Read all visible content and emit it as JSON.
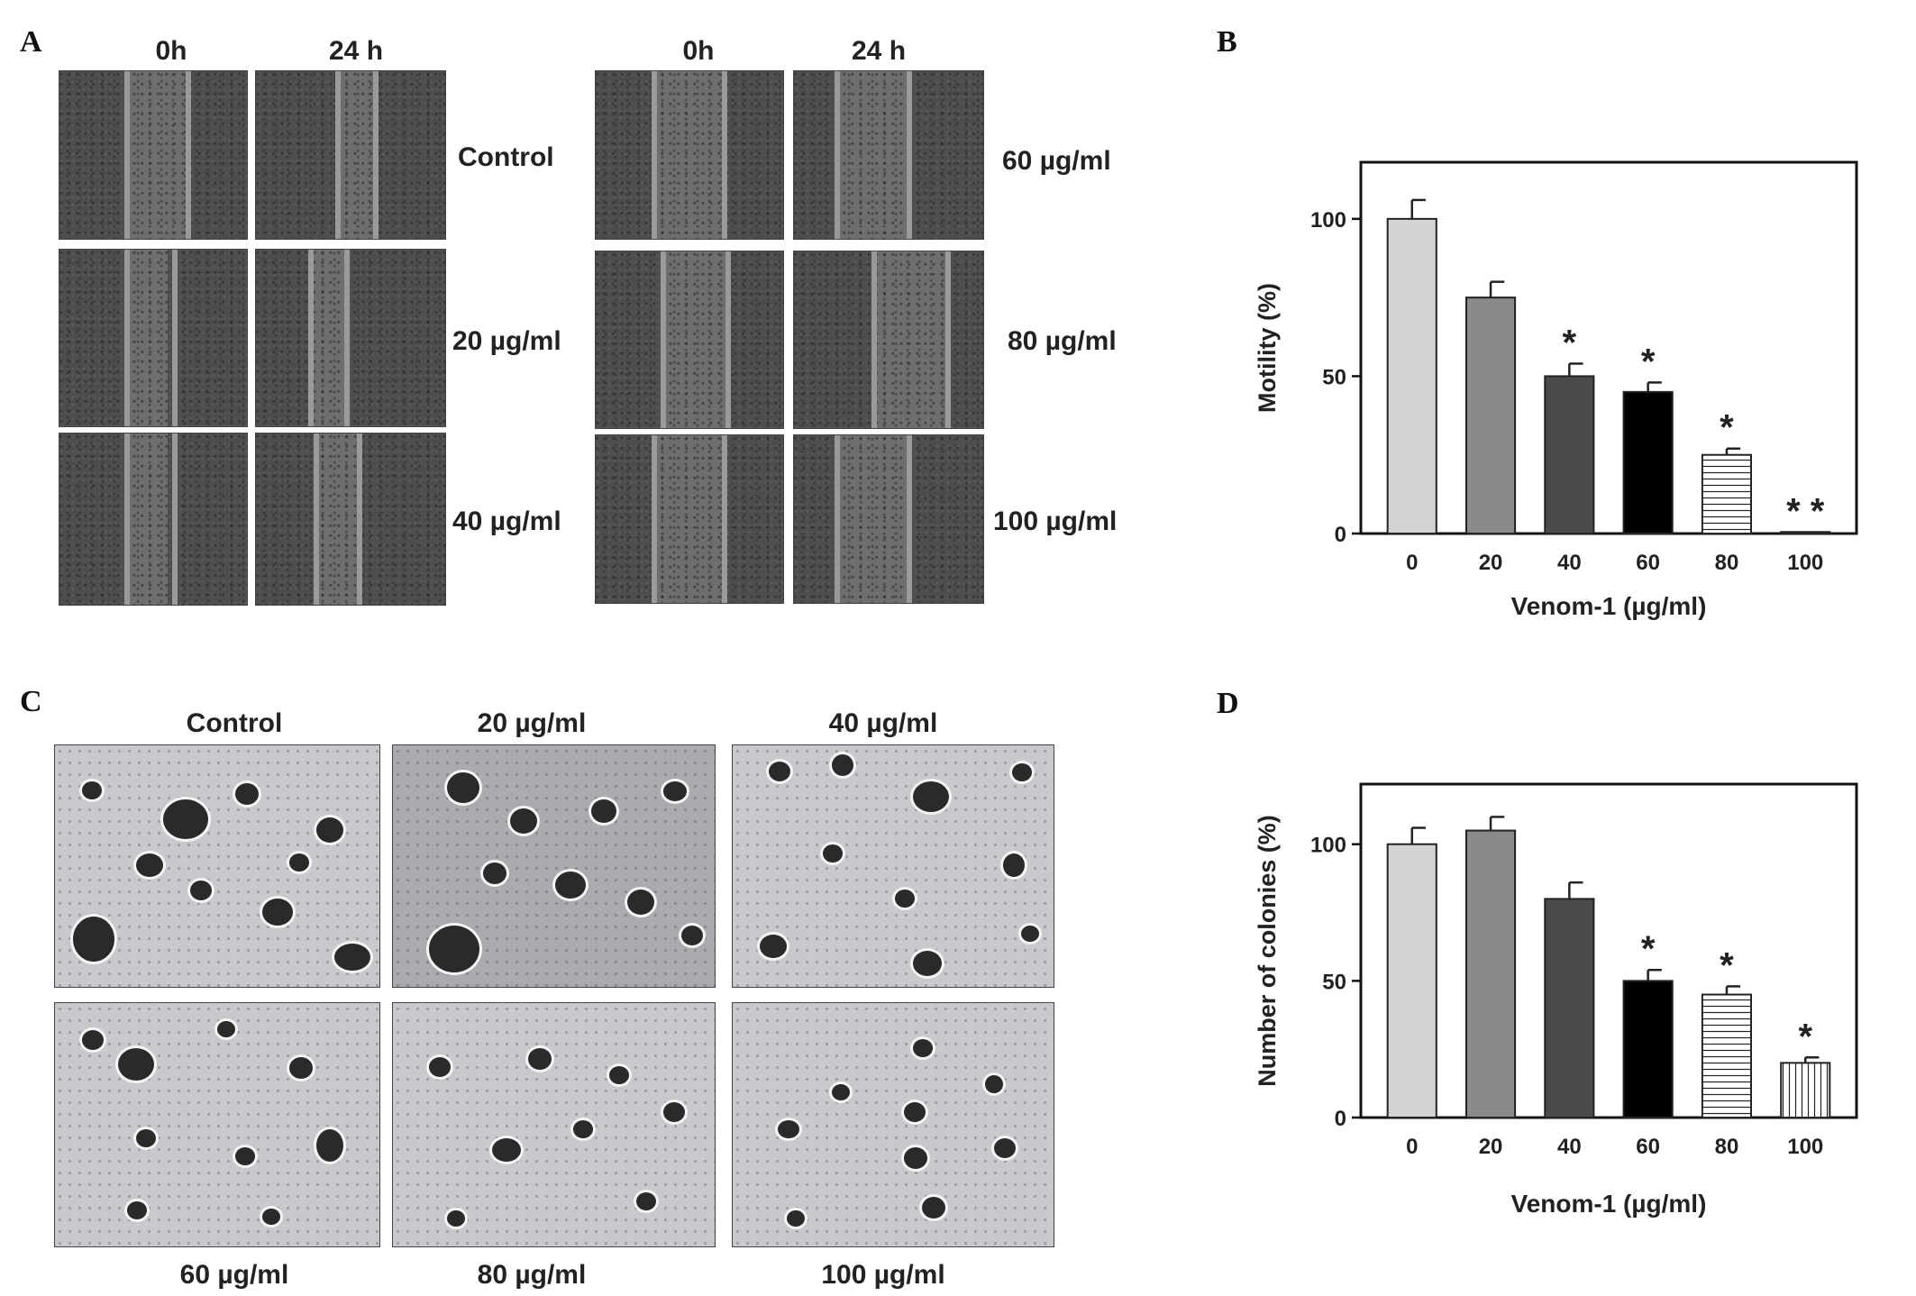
{
  "panels": {
    "A": {
      "letter": "A",
      "left_group": {
        "col_heads": [
          "0h",
          "24 h"
        ],
        "row_labels": [
          "Control",
          "20 µg/ml",
          "40 µg/ml"
        ]
      },
      "right_group": {
        "col_heads": [
          "0h",
          "24 h"
        ],
        "row_labels": [
          "60 µg/ml",
          "80 µg/ml",
          "100 µg/ml"
        ]
      }
    },
    "B": {
      "letter": "B"
    },
    "C": {
      "letter": "C",
      "top_labels": [
        "Control",
        "20 µg/ml",
        "40 µg/ml"
      ],
      "bottom_labels": [
        "60 µg/ml",
        "80 µg/ml",
        "100 µg/ml"
      ]
    },
    "D": {
      "letter": "D"
    }
  },
  "chart_data": [
    {
      "panel": "B",
      "type": "bar",
      "categories": [
        "0",
        "20",
        "40",
        "60",
        "80",
        "100"
      ],
      "values": [
        100,
        75,
        50,
        45,
        25,
        0.5
      ],
      "errors": [
        6,
        5,
        4,
        3,
        2,
        0
      ],
      "significance": [
        "",
        "",
        "*",
        "*",
        "*",
        "* *"
      ],
      "fills": [
        "#d4d4d6",
        "#8a8a8a",
        "#4a4a4a",
        "#000000",
        "hatch-horizontal",
        "#ffffff"
      ],
      "xlabel": "Venom-1 (µg/ml)",
      "ylabel": "Motility (%)",
      "yticks": [
        0,
        50,
        100
      ],
      "ylim": [
        0,
        118
      ]
    },
    {
      "panel": "D",
      "type": "bar",
      "categories": [
        "0",
        "20",
        "40",
        "60",
        "80",
        "100"
      ],
      "values": [
        100,
        105,
        80,
        50,
        45,
        20
      ],
      "errors": [
        6,
        5,
        6,
        4,
        3,
        2
      ],
      "significance": [
        "",
        "",
        "",
        "*",
        "*",
        "*"
      ],
      "fills": [
        "#d4d4d6",
        "#8a8a8a",
        "#4a4a4a",
        "#000000",
        "hatch-horizontal",
        "hatch-vertical"
      ],
      "xlabel": "Venom-1 (µg/ml)",
      "ylabel": "Number of colonies (%)",
      "yticks": [
        0,
        50,
        100
      ],
      "ylim": [
        0,
        122
      ]
    }
  ]
}
